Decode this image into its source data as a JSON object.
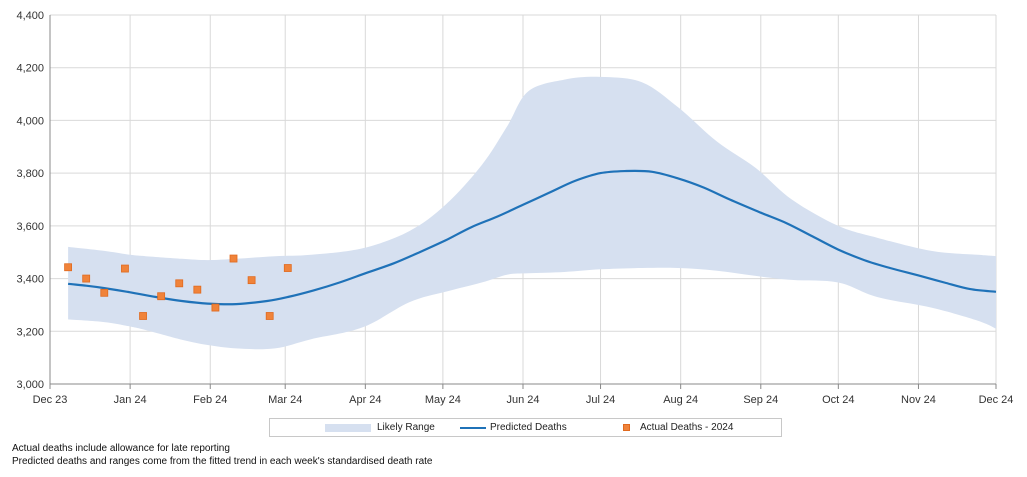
{
  "chart_data": {
    "type": "line",
    "title": "",
    "xlabel": "",
    "ylabel": "",
    "ylim": [
      3000,
      4400
    ],
    "yticks": [
      3000,
      3200,
      3400,
      3600,
      3800,
      4000,
      4200,
      4400
    ],
    "ytick_labels": [
      "3,000",
      "3,200",
      "3,400",
      "3,600",
      "3,800",
      "4,000",
      "4,200",
      "4,400"
    ],
    "xlim_days": [
      0,
      366
    ],
    "x_unit": "days from 1 Dec 2023",
    "xticks": [
      {
        "label": "Dec 23",
        "day": 0
      },
      {
        "label": "Jan 24",
        "day": 31
      },
      {
        "label": "Feb 24",
        "day": 62
      },
      {
        "label": "Mar 24",
        "day": 91
      },
      {
        "label": "Apr 24",
        "day": 122
      },
      {
        "label": "May 24",
        "day": 152
      },
      {
        "label": "Jun 24",
        "day": 183
      },
      {
        "label": "Jul 24",
        "day": 213
      },
      {
        "label": "Aug 24",
        "day": 244
      },
      {
        "label": "Sep 24",
        "day": 275
      },
      {
        "label": "Oct 24",
        "day": 305
      },
      {
        "label": "Nov 24",
        "day": 336
      },
      {
        "label": "Dec 24",
        "day": 366
      }
    ],
    "grid": true,
    "legend_position": "bottom",
    "series": [
      {
        "name": "Likely Range",
        "kind": "band",
        "color": "#d6e0f0",
        "days": [
          7,
          21,
          31,
          37,
          51,
          61,
          72,
          87,
          101,
          121,
          139,
          153,
          167,
          177,
          185,
          199,
          213,
          229,
          243,
          258,
          273,
          287,
          305,
          320,
          341,
          359,
          366
        ],
        "lower": [
          3245,
          3235,
          3218,
          3205,
          3168,
          3148,
          3135,
          3135,
          3170,
          3215,
          3310,
          3350,
          3385,
          3415,
          3420,
          3425,
          3435,
          3440,
          3440,
          3430,
          3410,
          3395,
          3385,
          3330,
          3290,
          3240,
          3210
        ],
        "upper": [
          3520,
          3505,
          3490,
          3485,
          3475,
          3470,
          3475,
          3485,
          3490,
          3515,
          3580,
          3680,
          3830,
          3980,
          4110,
          4155,
          4165,
          4145,
          4050,
          3920,
          3820,
          3700,
          3600,
          3555,
          3505,
          3490,
          3485
        ]
      },
      {
        "name": "Predicted Deaths",
        "kind": "line",
        "color": "#1f72b8",
        "days": [
          7,
          14,
          21,
          31,
          41,
          51,
          61,
          72,
          84,
          92,
          102,
          112,
          122,
          133,
          143,
          153,
          163,
          173,
          183,
          193,
          203,
          213,
          223,
          233,
          243,
          253,
          263,
          275,
          285,
          295,
          305,
          315,
          325,
          336,
          346,
          356,
          366
        ],
        "values": [
          3380,
          3373,
          3364,
          3348,
          3330,
          3315,
          3305,
          3303,
          3315,
          3330,
          3355,
          3385,
          3420,
          3458,
          3500,
          3545,
          3595,
          3635,
          3680,
          3725,
          3770,
          3800,
          3808,
          3805,
          3780,
          3745,
          3700,
          3650,
          3610,
          3560,
          3510,
          3470,
          3440,
          3412,
          3385,
          3360,
          3350
        ]
      },
      {
        "name": "Actual Deaths - 2024",
        "kind": "scatter",
        "color": "#f0833a",
        "days": [
          7,
          14,
          21,
          29,
          36,
          43,
          50,
          57,
          64,
          71,
          78,
          85,
          92
        ],
        "values": [
          3443,
          3400,
          3346,
          3438,
          3258,
          3333,
          3382,
          3358,
          3290,
          3476,
          3394,
          3258,
          3440
        ]
      }
    ],
    "legend": [
      "Likely Range",
      "Predicted Deaths",
      "Actual Deaths - 2024"
    ]
  },
  "notes": [
    "Actual deaths include allowance for late reporting",
    "Predicted deaths and ranges come from the fitted trend in each week's standardised death rate"
  ]
}
